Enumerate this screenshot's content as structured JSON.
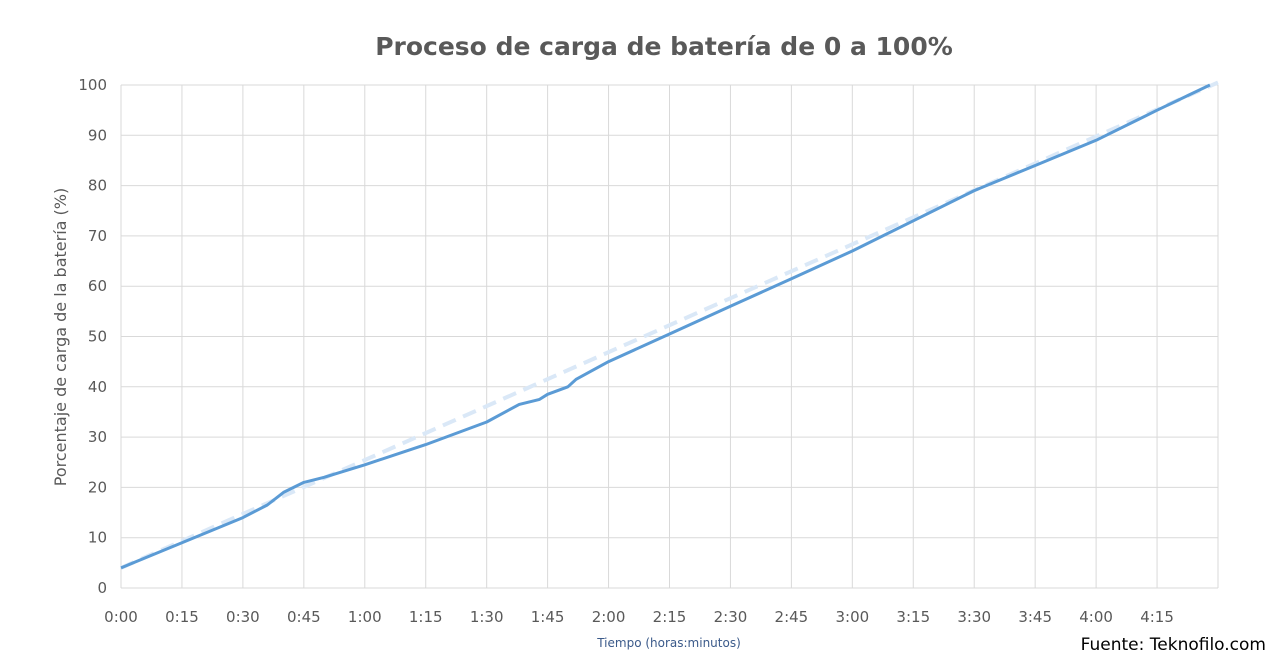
{
  "chart_data": {
    "type": "line",
    "title": "Proceso de carga de batería de 0 a 100%",
    "xlabel": "Tiempo (horas:minutos)",
    "ylabel": "Porcentaje de carga de la batería (%)",
    "source": "Fuente: Teknofilo.com",
    "x_ticks": [
      "0:00",
      "0:15",
      "0:30",
      "0:45",
      "1:00",
      "1:15",
      "1:30",
      "1:45",
      "2:00",
      "2:15",
      "2:30",
      "2:45",
      "3:00",
      "3:15",
      "3:30",
      "3:45",
      "4:00",
      "4:15"
    ],
    "y_ticks": [
      0,
      10,
      20,
      30,
      40,
      50,
      60,
      70,
      80,
      90,
      100
    ],
    "xlim_minutes": [
      0,
      270
    ],
    "ylim": [
      0,
      100
    ],
    "grid": true,
    "series": [
      {
        "style": "solid",
        "color": "#5b9bd5",
        "x_minutes": [
          0,
          15,
          30,
          36,
          40,
          45,
          50,
          60,
          75,
          90,
          98,
          103,
          105,
          110,
          112,
          120,
          135,
          150,
          165,
          180,
          195,
          210,
          225,
          240,
          255,
          268
        ],
        "y": [
          4,
          9,
          14,
          16.5,
          19,
          21,
          22,
          24.5,
          28.5,
          33,
          36.5,
          37.5,
          38.5,
          40,
          41.5,
          45,
          50.5,
          56,
          61.5,
          67,
          73,
          79,
          84,
          89,
          95,
          100
        ]
      },
      {
        "style": "dashed",
        "type": "trendline",
        "color": "#dae8f7",
        "x_minutes": [
          0,
          270
        ],
        "y": [
          4,
          100.5
        ]
      }
    ]
  }
}
